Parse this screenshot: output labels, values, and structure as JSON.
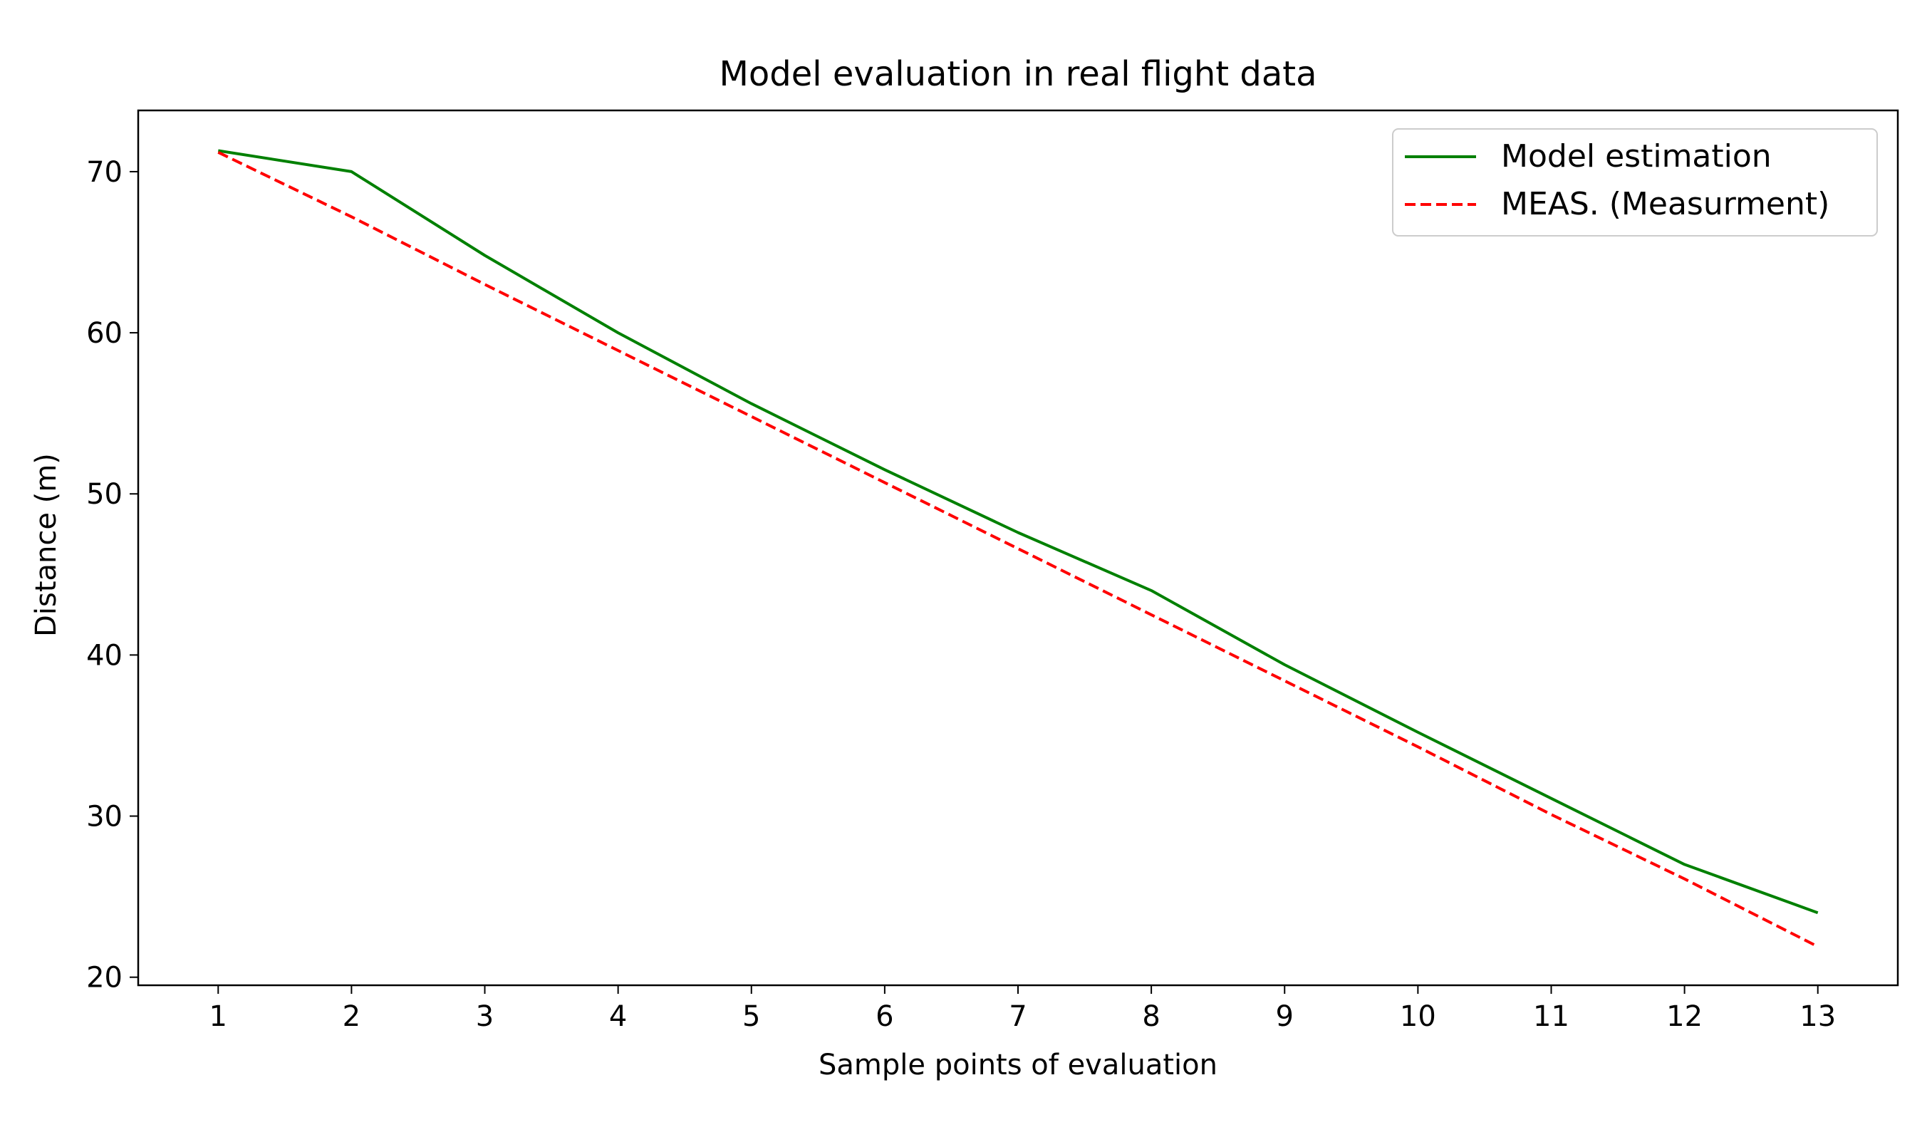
{
  "chart_data": {
    "type": "line",
    "title": "Model evaluation in real flight data",
    "xlabel": "Sample points of evaluation",
    "ylabel": "Distance (m)",
    "x": [
      1,
      2,
      3,
      4,
      5,
      6,
      7,
      8,
      9,
      10,
      11,
      12,
      13
    ],
    "xlim": [
      0.4,
      13.6
    ],
    "ylim": [
      19.5,
      73.8
    ],
    "xticks": [
      1,
      2,
      3,
      4,
      5,
      6,
      7,
      8,
      9,
      10,
      11,
      12,
      13
    ],
    "yticks": [
      20,
      30,
      40,
      50,
      60,
      70
    ],
    "grid": false,
    "legend_position": "top-right",
    "series": [
      {
        "name": "Model estimation",
        "color": "#008000",
        "style": "solid",
        "values": [
          71.3,
          70.0,
          64.8,
          60.0,
          55.6,
          51.5,
          47.6,
          44.0,
          39.4,
          35.2,
          31.1,
          27.0,
          24.0
        ]
      },
      {
        "name": "MEAS. (Measurment)",
        "color": "#ff0000",
        "style": "dashed",
        "values": [
          71.2,
          67.2,
          63.0,
          58.9,
          54.8,
          50.7,
          46.6,
          42.5,
          38.4,
          34.3,
          30.1,
          26.1,
          21.9
        ]
      }
    ]
  }
}
